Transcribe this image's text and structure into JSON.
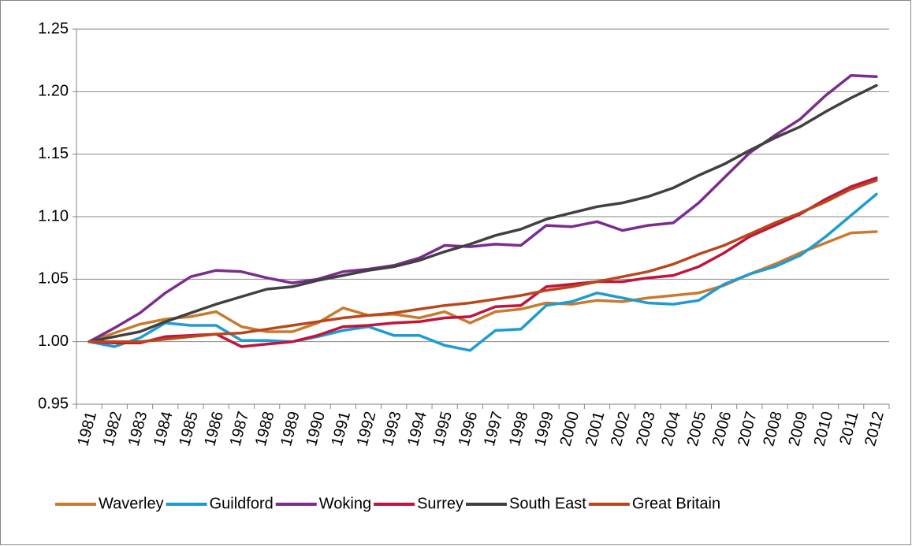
{
  "chart_data": {
    "type": "line",
    "categories": [
      "1981",
      "1982",
      "1983",
      "1984",
      "1985",
      "1986",
      "1987",
      "1988",
      "1989",
      "1990",
      "1991",
      "1992",
      "1993",
      "1994",
      "1995",
      "1996",
      "1997",
      "1998",
      "1999",
      "2000",
      "2001",
      "2002",
      "2003",
      "2004",
      "2005",
      "2006",
      "2007",
      "2008",
      "2009",
      "2010",
      "2011",
      "2012"
    ],
    "series": [
      {
        "name": "Waverley",
        "color": "#c87b2e",
        "values": [
          1.0,
          1.007,
          1.014,
          1.018,
          1.02,
          1.024,
          1.012,
          1.008,
          1.008,
          1.015,
          1.027,
          1.021,
          1.022,
          1.019,
          1.024,
          1.015,
          1.024,
          1.026,
          1.031,
          1.03,
          1.033,
          1.032,
          1.035,
          1.037,
          1.039,
          1.045,
          1.054,
          1.062,
          1.071,
          1.079,
          1.087,
          1.088
        ]
      },
      {
        "name": "Guildford",
        "color": "#1f9bd1",
        "values": [
          1.0,
          0.996,
          1.003,
          1.015,
          1.013,
          1.013,
          1.001,
          1.001,
          1.0,
          1.004,
          1.009,
          1.012,
          1.005,
          1.005,
          0.997,
          0.993,
          1.009,
          1.01,
          1.029,
          1.032,
          1.039,
          1.035,
          1.031,
          1.03,
          1.033,
          1.046,
          1.054,
          1.06,
          1.069,
          1.084,
          1.101,
          1.118
        ]
      },
      {
        "name": "Woking",
        "color": "#7b2c8e",
        "values": [
          1.0,
          1.011,
          1.023,
          1.039,
          1.052,
          1.057,
          1.056,
          1.051,
          1.047,
          1.05,
          1.056,
          1.058,
          1.061,
          1.067,
          1.077,
          1.076,
          1.078,
          1.077,
          1.093,
          1.092,
          1.096,
          1.089,
          1.093,
          1.095,
          1.111,
          1.131,
          1.151,
          1.165,
          1.178,
          1.197,
          1.213,
          1.212
        ]
      },
      {
        "name": "Surrey",
        "color": "#c0143c",
        "values": [
          1.0,
          0.999,
          0.999,
          1.004,
          1.005,
          1.006,
          0.996,
          0.998,
          1.0,
          1.005,
          1.012,
          1.013,
          1.015,
          1.016,
          1.019,
          1.02,
          1.028,
          1.029,
          1.044,
          1.046,
          1.048,
          1.048,
          1.051,
          1.053,
          1.06,
          1.071,
          1.084,
          1.093,
          1.102,
          1.114,
          1.124,
          1.131
        ]
      },
      {
        "name": "South East",
        "color": "#404040",
        "values": [
          1.0,
          1.004,
          1.008,
          1.016,
          1.023,
          1.03,
          1.036,
          1.042,
          1.044,
          1.049,
          1.053,
          1.057,
          1.06,
          1.065,
          1.072,
          1.078,
          1.085,
          1.09,
          1.098,
          1.103,
          1.108,
          1.111,
          1.116,
          1.123,
          1.133,
          1.142,
          1.153,
          1.163,
          1.172,
          1.184,
          1.195,
          1.205
        ]
      },
      {
        "name": "Great Britain",
        "color": "#b8471c",
        "values": [
          1.0,
          1.0,
          1.0,
          1.002,
          1.004,
          1.006,
          1.007,
          1.01,
          1.013,
          1.016,
          1.019,
          1.021,
          1.023,
          1.026,
          1.029,
          1.031,
          1.034,
          1.037,
          1.041,
          1.044,
          1.048,
          1.052,
          1.056,
          1.062,
          1.07,
          1.077,
          1.086,
          1.095,
          1.103,
          1.112,
          1.122,
          1.129
        ]
      }
    ],
    "ylim": [
      0.95,
      1.25
    ],
    "yticks": [
      0.95,
      {
        "value": 1.0,
        "label": "1.00"
      },
      1.05,
      {
        "value": 1.1,
        "label": "1.10"
      },
      1.15,
      {
        "value": 1.2,
        "label": "1.20"
      },
      1.25
    ],
    "grid": true,
    "legend": "bottom"
  }
}
